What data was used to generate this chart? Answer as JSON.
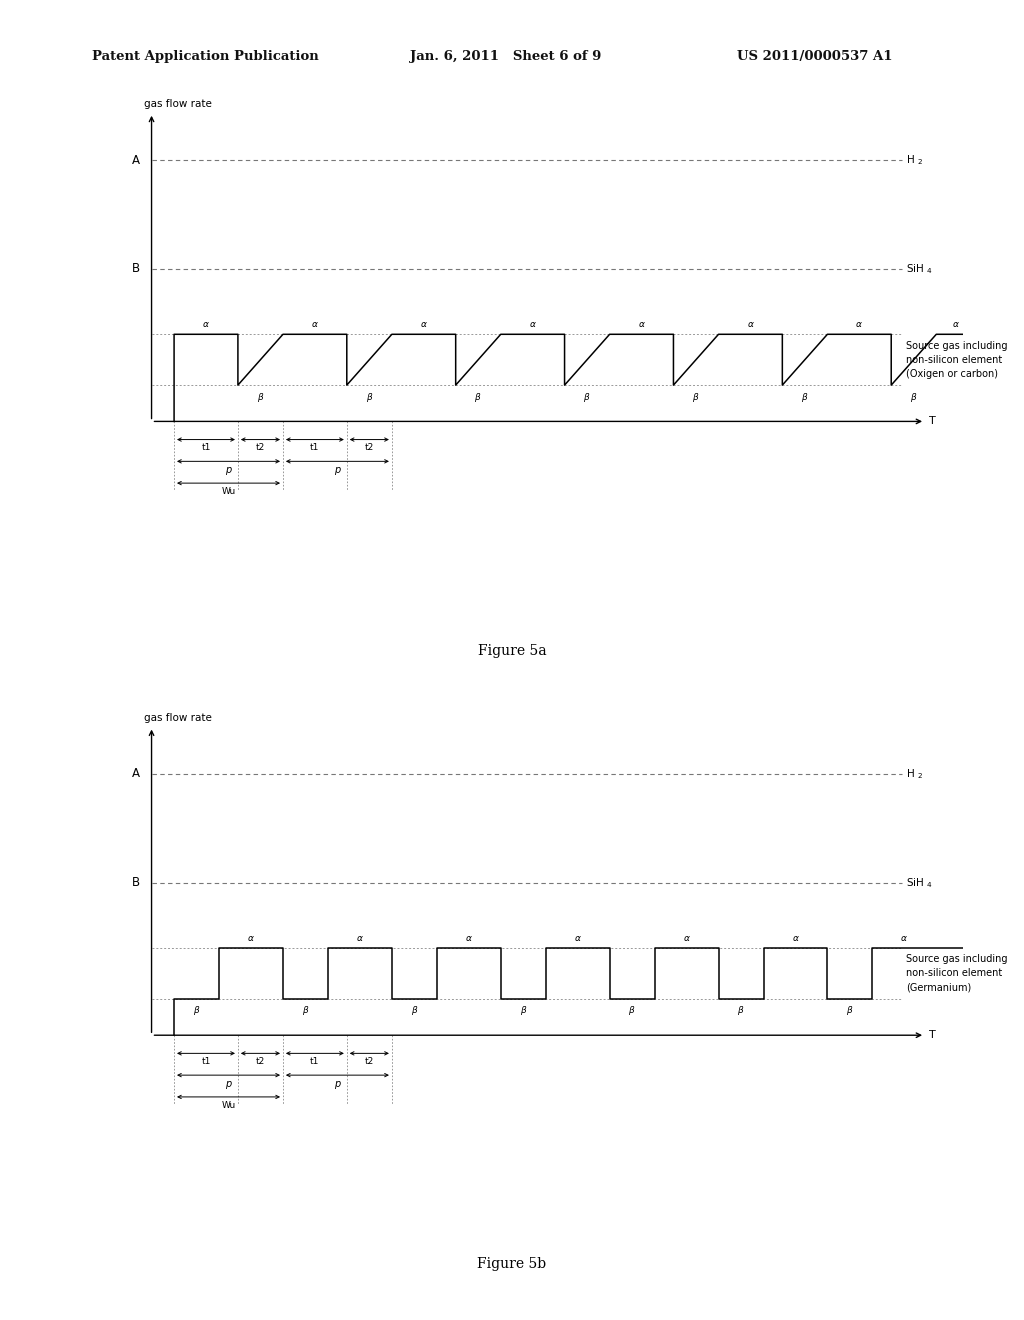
{
  "header_left": "Patent Application Publication",
  "header_mid": "Jan. 6, 2011   Sheet 6 of 9",
  "header_right": "US 2011/0000537 A1",
  "fig_a_label": "Figure 5a",
  "fig_b_label": "Figure 5b",
  "y_label": "gas flow rate",
  "H2_label": "H $_{2}$",
  "SiH4_label": "SiH $_{4}$",
  "source_label_a": "Source gas including\nnon-silicon element\n(Oxigen or carbon)",
  "source_label_b": "Source gas including\nnon-silicon element\n(Germanium)",
  "bg_color": "#ffffff"
}
